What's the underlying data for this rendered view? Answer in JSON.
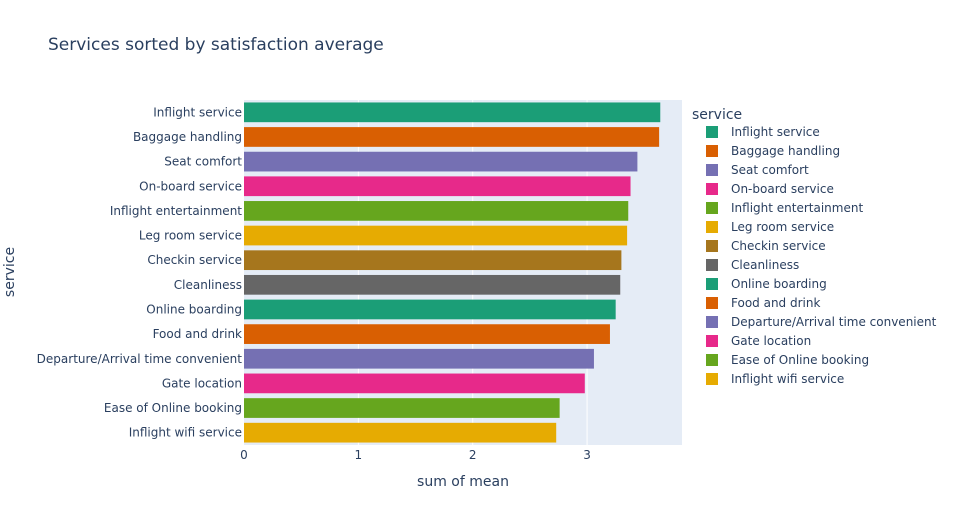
{
  "chart_data": {
    "type": "bar",
    "orientation": "horizontal",
    "title": "Services sorted by satisfaction average",
    "xlabel": "sum of mean",
    "ylabel": "service",
    "xlim": [
      0,
      3.83
    ],
    "xticks": [
      0,
      1,
      2,
      3
    ],
    "grid": true,
    "legend_title": "service",
    "legend_position": "right",
    "categories": [
      "Inflight service",
      "Baggage handling",
      "Seat comfort",
      "On-board service",
      "Inflight entertainment",
      "Leg room service",
      "Checkin service",
      "Cleanliness",
      "Online boarding",
      "Food and drink",
      "Departure/Arrival time convenient",
      "Gate location",
      "Ease of Online booking",
      "Inflight wifi service"
    ],
    "values": [
      3.64,
      3.63,
      3.44,
      3.38,
      3.36,
      3.35,
      3.3,
      3.29,
      3.25,
      3.2,
      3.06,
      2.98,
      2.76,
      2.73
    ],
    "colors": [
      "#1b9e77",
      "#d95f02",
      "#7570b3",
      "#e7298a",
      "#66a61e",
      "#e6ab02",
      "#a6761d",
      "#666666",
      "#1b9e77",
      "#d95f02",
      "#7570b3",
      "#e7298a",
      "#66a61e",
      "#e6ab02"
    ]
  }
}
